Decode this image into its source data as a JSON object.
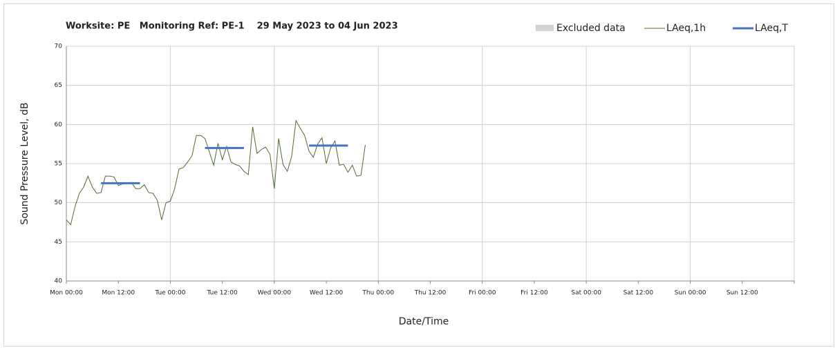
{
  "chart_data": {
    "type": "line",
    "title": "Worksite: PE   Monitoring Ref: PE-1    29 May 2023 to 04 Jun 2023",
    "x_label": "Date/Time",
    "y_label": "Sound Pressure Level, dB",
    "xlim": [
      0,
      168
    ],
    "ylim": [
      40,
      70
    ],
    "yticks": [
      40,
      45,
      50,
      55,
      60,
      65,
      70
    ],
    "xticks": [
      {
        "value": 0,
        "label": "Mon 00:00"
      },
      {
        "value": 12,
        "label": "Mon 12:00"
      },
      {
        "value": 24,
        "label": "Tue 00:00"
      },
      {
        "value": 36,
        "label": "Tue 12:00"
      },
      {
        "value": 48,
        "label": "Wed 00:00"
      },
      {
        "value": 60,
        "label": "Wed 12:00"
      },
      {
        "value": 72,
        "label": "Thu 00:00"
      },
      {
        "value": 84,
        "label": "Thu 12:00"
      },
      {
        "value": 96,
        "label": "Fri 00:00"
      },
      {
        "value": 108,
        "label": "Fri 12:00"
      },
      {
        "value": 120,
        "label": "Sat 00:00"
      },
      {
        "value": 132,
        "label": "Sat 12:00"
      },
      {
        "value": 144,
        "label": "Sun 00:00"
      },
      {
        "value": 156,
        "label": "Sun 12:00"
      },
      {
        "value": 168,
        "label": ""
      }
    ],
    "grid": true,
    "excluded": {
      "name": "Excluded data",
      "color": "#d3d3d3"
    },
    "series": [
      {
        "name": "LAeq,1h",
        "color": "#4f6b2f",
        "x": [
          0,
          1,
          2,
          3,
          4,
          5,
          6,
          7,
          8,
          9,
          10,
          11,
          12,
          13,
          14,
          15,
          16,
          17,
          18,
          19,
          20,
          21,
          22,
          23,
          24,
          25,
          26,
          27,
          28,
          29,
          30,
          31,
          32,
          33,
          34,
          35,
          36,
          37,
          38,
          39,
          40,
          41,
          42,
          43,
          44,
          45,
          46,
          47,
          48,
          49,
          50,
          51,
          52,
          53,
          54,
          55,
          56,
          57,
          58,
          59,
          60,
          61,
          62,
          63,
          64,
          65,
          66,
          67,
          68,
          69,
          70,
          71
        ],
        "values": [
          47.8,
          47.2,
          49.5,
          51.2,
          52,
          53.4,
          52,
          51.2,
          51.3,
          53.4,
          53.4,
          53.3,
          52.2,
          52.4,
          52.5,
          52.6,
          51.8,
          51.8,
          52.3,
          51.3,
          51.2,
          50.3,
          47.8,
          50,
          50.2,
          51.8,
          54.3,
          54.5,
          55.2,
          56,
          58.6,
          58.6,
          58.2,
          56.5,
          54.8,
          57.6,
          55.5,
          57.2,
          55.2,
          54.9,
          54.7,
          54,
          53.6,
          59.7,
          56.3,
          56.8,
          57.1,
          56.2,
          51.8,
          58.2,
          54.9,
          54,
          55.9,
          60.5,
          59.5,
          58.6,
          56.6,
          55.8,
          57.5,
          58.3,
          55,
          57,
          57.9,
          54.8,
          54.9,
          53.9,
          54.8,
          53.4,
          53.5,
          57.4,
          null,
          null
        ]
      },
      {
        "name": "LAeq,T",
        "color": "#4472c4",
        "segments": [
          {
            "x": [
              8,
              17
            ],
            "value": 52.5
          },
          {
            "x": [
              32,
              41
            ],
            "value": 57.0
          },
          {
            "x": [
              56,
              65
            ],
            "value": 57.3
          }
        ]
      }
    ]
  }
}
